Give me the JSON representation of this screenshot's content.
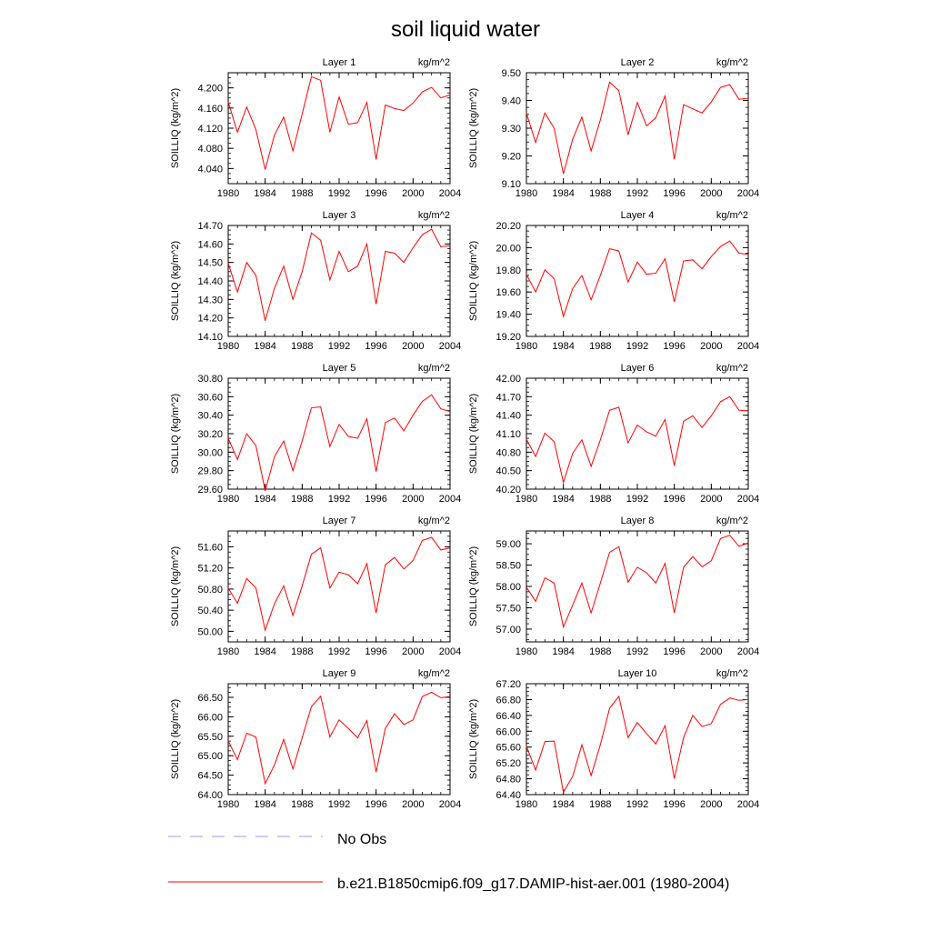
{
  "title": "soil liquid water",
  "legend": {
    "obs_label": "No Obs",
    "obs_color": "#9999ff",
    "model_label": "b.e21.B1850cmip6.f09_g17.DAMIP-hist-aer.001 (1980-2004)",
    "model_color": "#ff0000"
  },
  "chart_data": [
    {
      "type": "line",
      "title": "Layer 1",
      "units": "kg/m^2",
      "ylabel": "SOILLIQ  (kg/m^2)",
      "xlim": [
        1980,
        2004
      ],
      "xticks": [
        1980,
        1984,
        1988,
        1992,
        1996,
        2000,
        2004
      ],
      "ylim": [
        4.01,
        4.23
      ],
      "yticks": [
        "4.040",
        "4.080",
        "4.120",
        "4.160",
        "4.200"
      ],
      "x": [
        1980,
        1981,
        1982,
        1983,
        1984,
        1985,
        1986,
        1987,
        1988,
        1989,
        1990,
        1991,
        1992,
        1993,
        1994,
        1995,
        1996,
        1997,
        1998,
        1999,
        2000,
        2001,
        2002,
        2003,
        2004
      ],
      "series": [
        {
          "values": [
            4.172,
            4.112,
            4.162,
            4.117,
            4.038,
            4.106,
            4.142,
            4.075,
            4.148,
            4.222,
            4.215,
            4.112,
            4.182,
            4.128,
            4.131,
            4.171,
            4.058,
            4.166,
            4.159,
            4.155,
            4.17,
            4.192,
            4.201,
            4.18,
            4.186
          ]
        }
      ]
    },
    {
      "type": "line",
      "title": "Layer 2",
      "units": "kg/m^2",
      "ylabel": "SOILLIQ  (kg/m^2)",
      "xlim": [
        1980,
        2004
      ],
      "xticks": [
        1980,
        1984,
        1988,
        1992,
        1996,
        2000,
        2004
      ],
      "ylim": [
        9.1,
        9.5
      ],
      "yticks": [
        "9.10",
        "9.20",
        "9.30",
        "9.40",
        "9.50"
      ],
      "x": [
        1980,
        1981,
        1982,
        1983,
        1984,
        1985,
        1986,
        1987,
        1988,
        1989,
        1990,
        1991,
        1992,
        1993,
        1994,
        1995,
        1996,
        1997,
        1998,
        1999,
        2000,
        2001,
        2002,
        2003,
        2004
      ],
      "series": [
        {
          "values": [
            9.355,
            9.248,
            9.355,
            9.3,
            9.135,
            9.26,
            9.34,
            9.218,
            9.33,
            9.466,
            9.435,
            9.276,
            9.393,
            9.308,
            9.338,
            9.416,
            9.188,
            9.385,
            9.37,
            9.355,
            9.395,
            9.447,
            9.457,
            9.404,
            9.408
          ]
        }
      ]
    },
    {
      "type": "line",
      "title": "Layer 3",
      "units": "kg/m^2",
      "ylabel": "SOILLIQ  (kg/m^2)",
      "xlim": [
        1980,
        2004
      ],
      "xticks": [
        1980,
        1984,
        1988,
        1992,
        1996,
        2000,
        2004
      ],
      "ylim": [
        14.1,
        14.7
      ],
      "yticks": [
        "14.10",
        "14.20",
        "14.30",
        "14.40",
        "14.50",
        "14.60",
        "14.70"
      ],
      "x": [
        1980,
        1981,
        1982,
        1983,
        1984,
        1985,
        1986,
        1987,
        1988,
        1989,
        1990,
        1991,
        1992,
        1993,
        1994,
        1995,
        1996,
        1997,
        1998,
        1999,
        2000,
        2001,
        2002,
        2003,
        2004
      ],
      "series": [
        {
          "values": [
            14.495,
            14.34,
            14.5,
            14.43,
            14.185,
            14.36,
            14.48,
            14.3,
            14.45,
            14.66,
            14.62,
            14.405,
            14.56,
            14.45,
            14.48,
            14.6,
            14.275,
            14.56,
            14.55,
            14.5,
            14.58,
            14.65,
            14.68,
            14.585,
            14.59
          ]
        }
      ]
    },
    {
      "type": "line",
      "title": "Layer 4",
      "units": "kg/m^2",
      "ylabel": "SOILLIQ  (kg/m^2)",
      "xlim": [
        1980,
        2004
      ],
      "xticks": [
        1980,
        1984,
        1988,
        1992,
        1996,
        2000,
        2004
      ],
      "ylim": [
        19.2,
        20.2
      ],
      "yticks": [
        "19.20",
        "19.40",
        "19.60",
        "19.80",
        "20.00",
        "20.20"
      ],
      "x": [
        1980,
        1981,
        1982,
        1983,
        1984,
        1985,
        1986,
        1987,
        1988,
        1989,
        1990,
        1991,
        1992,
        1993,
        1994,
        1995,
        1996,
        1997,
        1998,
        1999,
        2000,
        2001,
        2002,
        2003,
        2004
      ],
      "series": [
        {
          "values": [
            19.76,
            19.6,
            19.8,
            19.72,
            19.38,
            19.63,
            19.75,
            19.53,
            19.75,
            19.99,
            19.97,
            19.69,
            19.87,
            19.76,
            19.77,
            19.9,
            19.51,
            19.88,
            19.89,
            19.81,
            19.92,
            20.01,
            20.06,
            19.95,
            19.94
          ]
        }
      ]
    },
    {
      "type": "line",
      "title": "Layer 5",
      "units": "kg/m^2",
      "ylabel": "SOILLIQ  (kg/m^2)",
      "xlim": [
        1980,
        2004
      ],
      "xticks": [
        1980,
        1984,
        1988,
        1992,
        1996,
        2000,
        2004
      ],
      "ylim": [
        29.6,
        30.8
      ],
      "yticks": [
        "29.60",
        "29.80",
        "30.00",
        "30.20",
        "30.40",
        "30.60",
        "30.80"
      ],
      "x": [
        1980,
        1981,
        1982,
        1983,
        1984,
        1985,
        1986,
        1987,
        1988,
        1989,
        1990,
        1991,
        1992,
        1993,
        1994,
        1995,
        1996,
        1997,
        1998,
        1999,
        2000,
        2001,
        2002,
        2003,
        2004
      ],
      "series": [
        {
          "values": [
            30.15,
            29.92,
            30.2,
            30.07,
            29.58,
            29.95,
            30.12,
            29.8,
            30.12,
            30.48,
            30.49,
            30.06,
            30.3,
            30.17,
            30.15,
            30.36,
            29.79,
            30.32,
            30.37,
            30.23,
            30.4,
            30.55,
            30.62,
            30.47,
            30.44
          ]
        }
      ]
    },
    {
      "type": "line",
      "title": "Layer 6",
      "units": "kg/m^2",
      "ylabel": "SOILLIQ  (kg/m^2)",
      "xlim": [
        1980,
        2004
      ],
      "xticks": [
        1980,
        1984,
        1988,
        1992,
        1996,
        2000,
        2004
      ],
      "ylim": [
        40.2,
        42.0
      ],
      "yticks": [
        "40.20",
        "40.50",
        "40.80",
        "41.10",
        "41.40",
        "41.70",
        "42.00"
      ],
      "x": [
        1980,
        1981,
        1982,
        1983,
        1984,
        1985,
        1986,
        1987,
        1988,
        1989,
        1990,
        1991,
        1992,
        1993,
        1994,
        1995,
        1996,
        1997,
        1998,
        1999,
        2000,
        2001,
        2002,
        2003,
        2004
      ],
      "series": [
        {
          "values": [
            41.01,
            40.73,
            41.11,
            40.97,
            40.31,
            40.78,
            41.0,
            40.57,
            41.0,
            41.48,
            41.53,
            40.95,
            41.24,
            41.13,
            41.06,
            41.33,
            40.58,
            41.3,
            41.39,
            41.2,
            41.39,
            41.62,
            41.7,
            41.48,
            41.47
          ]
        }
      ]
    },
    {
      "type": "line",
      "title": "Layer 7",
      "units": "kg/m^2",
      "ylabel": "SOILLIQ  (kg/m^2)",
      "xlim": [
        1980,
        2004
      ],
      "xticks": [
        1980,
        1984,
        1988,
        1992,
        1996,
        2000,
        2004
      ],
      "ylim": [
        49.8,
        51.9
      ],
      "yticks": [
        "50.00",
        "50.40",
        "50.80",
        "51.20",
        "51.60"
      ],
      "x": [
        1980,
        1981,
        1982,
        1983,
        1984,
        1985,
        1986,
        1987,
        1988,
        1989,
        1990,
        1991,
        1992,
        1993,
        1994,
        1995,
        1996,
        1997,
        1998,
        1999,
        2000,
        2001,
        2002,
        2003,
        2004
      ],
      "series": [
        {
          "values": [
            50.82,
            50.53,
            51.0,
            50.82,
            50.02,
            50.52,
            50.86,
            50.3,
            50.86,
            51.46,
            51.58,
            50.82,
            51.12,
            51.07,
            50.9,
            51.28,
            50.35,
            51.26,
            51.4,
            51.18,
            51.34,
            51.72,
            51.78,
            51.54,
            51.58
          ]
        }
      ]
    },
    {
      "type": "line",
      "title": "Layer 8",
      "units": "kg/m^2",
      "ylabel": "SOILLIQ  (kg/m^2)",
      "xlim": [
        1980,
        2004
      ],
      "xticks": [
        1980,
        1984,
        1988,
        1992,
        1996,
        2000,
        2004
      ],
      "ylim": [
        56.7,
        59.3
      ],
      "yticks": [
        "57.00",
        "57.50",
        "58.00",
        "58.50",
        "59.00"
      ],
      "x": [
        1980,
        1981,
        1982,
        1983,
        1984,
        1985,
        1986,
        1987,
        1988,
        1989,
        1990,
        1991,
        1992,
        1993,
        1994,
        1995,
        1996,
        1997,
        1998,
        1999,
        2000,
        2001,
        2002,
        2003,
        2004
      ],
      "series": [
        {
          "values": [
            57.98,
            57.65,
            58.2,
            58.08,
            57.05,
            57.56,
            58.08,
            57.38,
            58.08,
            58.8,
            58.93,
            58.1,
            58.45,
            58.32,
            58.08,
            58.54,
            57.38,
            58.45,
            58.7,
            58.46,
            58.6,
            59.12,
            59.2,
            58.94,
            59.02
          ]
        }
      ]
    },
    {
      "type": "line",
      "title": "Layer 9",
      "units": "kg/m^2",
      "ylabel": "SOILLIQ  (kg/m^2)",
      "xlim": [
        1980,
        2004
      ],
      "xticks": [
        1980,
        1984,
        1988,
        1992,
        1996,
        2000,
        2004
      ],
      "ylim": [
        64.0,
        66.85
      ],
      "yticks": [
        "64.00",
        "64.50",
        "65.00",
        "65.50",
        "66.00",
        "66.50"
      ],
      "x": [
        1980,
        1981,
        1982,
        1983,
        1984,
        1985,
        1986,
        1987,
        1988,
        1989,
        1990,
        1991,
        1992,
        1993,
        1994,
        1995,
        1996,
        1997,
        1998,
        1999,
        2000,
        2001,
        2002,
        2003,
        2004
      ],
      "series": [
        {
          "values": [
            65.38,
            64.9,
            65.58,
            65.48,
            64.28,
            64.76,
            65.42,
            64.66,
            65.46,
            66.26,
            66.53,
            65.48,
            65.92,
            65.7,
            65.46,
            65.9,
            64.58,
            65.7,
            66.08,
            65.8,
            65.92,
            66.52,
            66.63,
            66.49,
            66.52
          ]
        }
      ]
    },
    {
      "type": "line",
      "title": "Layer 10",
      "units": "kg/m^2",
      "ylabel": "SOILLIQ  (kg/m^2)",
      "xlim": [
        1980,
        2004
      ],
      "xticks": [
        1980,
        1984,
        1988,
        1992,
        1996,
        2000,
        2004
      ],
      "ylim": [
        64.4,
        67.2
      ],
      "yticks": [
        "64.40",
        "64.80",
        "65.20",
        "65.60",
        "66.00",
        "66.40",
        "66.80",
        "67.20"
      ],
      "x": [
        1980,
        1981,
        1982,
        1983,
        1984,
        1985,
        1986,
        1987,
        1988,
        1989,
        1990,
        1991,
        1992,
        1993,
        1994,
        1995,
        1996,
        1997,
        1998,
        1999,
        2000,
        2001,
        2002,
        2003,
        2004
      ],
      "series": [
        {
          "values": [
            65.62,
            65.02,
            65.74,
            65.75,
            64.46,
            64.86,
            65.66,
            64.88,
            65.66,
            66.58,
            66.88,
            65.84,
            66.22,
            65.94,
            65.68,
            66.14,
            64.8,
            65.84,
            66.4,
            66.12,
            66.19,
            66.68,
            66.84,
            66.78,
            66.8
          ]
        }
      ]
    }
  ]
}
